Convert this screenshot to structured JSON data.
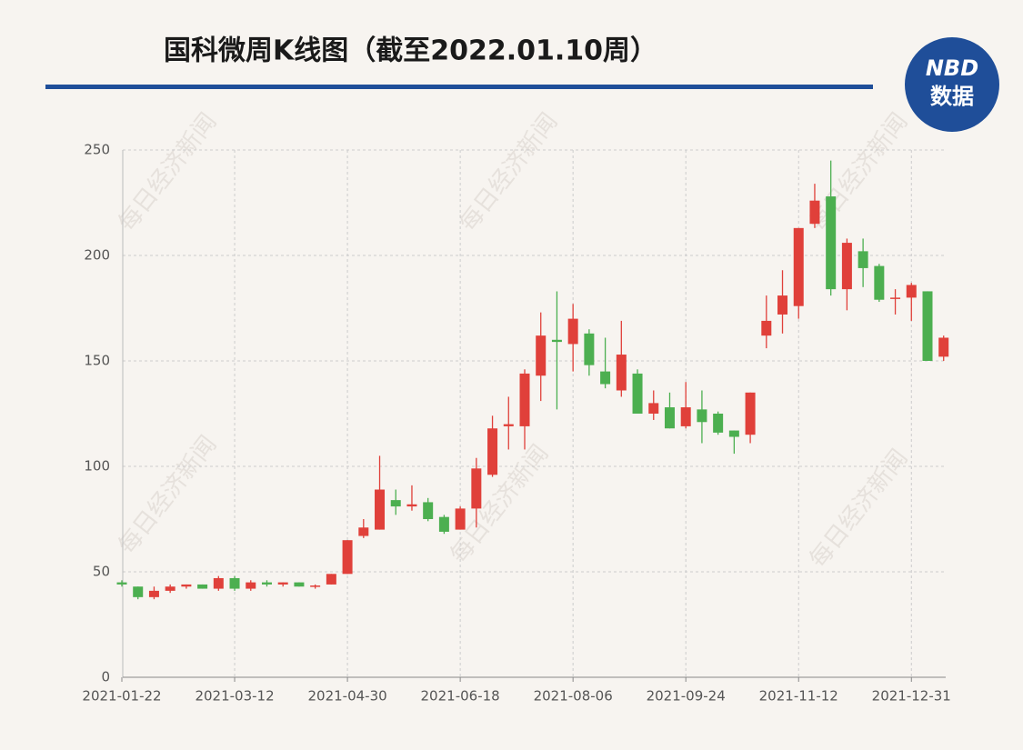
{
  "chart_data": {
    "type": "candlestick",
    "title": "国科微周K线图（截至2022.01.10周）",
    "logo": {
      "line1": "NBD",
      "line2": "数据"
    },
    "watermark": "每日经济新闻",
    "categories": [
      "2021-01-22",
      null,
      null,
      null,
      null,
      null,
      null,
      "2021-03-12",
      null,
      null,
      null,
      null,
      null,
      null,
      "2021-04-30",
      null,
      null,
      null,
      null,
      null,
      null,
      "2021-06-18",
      null,
      null,
      null,
      null,
      null,
      null,
      "2021-08-06",
      null,
      null,
      null,
      null,
      null,
      null,
      "2021-09-24",
      null,
      null,
      null,
      null,
      null,
      null,
      "2021-11-12",
      null,
      null,
      null,
      null,
      null,
      null,
      "2021-12-31",
      null,
      null
    ],
    "open": [
      45,
      43,
      38,
      41,
      43,
      44,
      42,
      47,
      42,
      45,
      44,
      45,
      43,
      44,
      49,
      67,
      70,
      84,
      81,
      83,
      76,
      70,
      80,
      96,
      119,
      119,
      143,
      160,
      158,
      163,
      145,
      136,
      144,
      125,
      128,
      119,
      127,
      125,
      117,
      115,
      162,
      172,
      176,
      215,
      228,
      184,
      202,
      195,
      179.5,
      180,
      183,
      152
    ],
    "high": [
      46,
      43,
      43,
      44,
      44,
      44,
      48,
      48,
      46,
      46,
      45,
      45,
      44,
      49,
      65,
      75,
      105,
      89,
      91,
      85,
      77,
      81,
      104,
      124,
      133,
      146,
      173,
      183,
      177,
      165,
      161,
      169,
      146,
      136,
      135,
      140,
      136,
      126,
      117,
      135,
      181,
      193,
      213,
      234,
      245,
      208,
      208,
      196,
      184,
      187,
      183,
      162
    ],
    "low": [
      43,
      37,
      37,
      40,
      42,
      42,
      41,
      41,
      41,
      43,
      43,
      43,
      42,
      44,
      49,
      66,
      70,
      77,
      79,
      74,
      68,
      70,
      71,
      95,
      108,
      108,
      131,
      127,
      145,
      143,
      137,
      133,
      125,
      122,
      118,
      118,
      111,
      115,
      106,
      111,
      156,
      163,
      170,
      213,
      181,
      174,
      185,
      178,
      172,
      169,
      150,
      150
    ],
    "close": [
      44,
      38,
      41,
      43,
      44,
      42,
      47,
      42,
      45,
      44,
      45,
      43,
      43.5,
      49,
      65,
      71,
      89,
      81,
      82,
      75,
      69,
      80,
      99,
      118,
      120,
      144,
      162,
      159,
      170,
      148,
      139,
      153,
      125,
      130,
      118,
      128,
      121,
      116,
      114,
      135,
      169,
      181,
      213,
      226,
      184,
      206,
      194,
      179,
      180,
      186,
      150,
      161
    ],
    "up_color": "#e0403a",
    "down_color": "#4caf50",
    "ylim": [
      0,
      250
    ],
    "yticks": [
      0,
      50,
      100,
      150,
      200,
      250
    ],
    "grid": true
  }
}
